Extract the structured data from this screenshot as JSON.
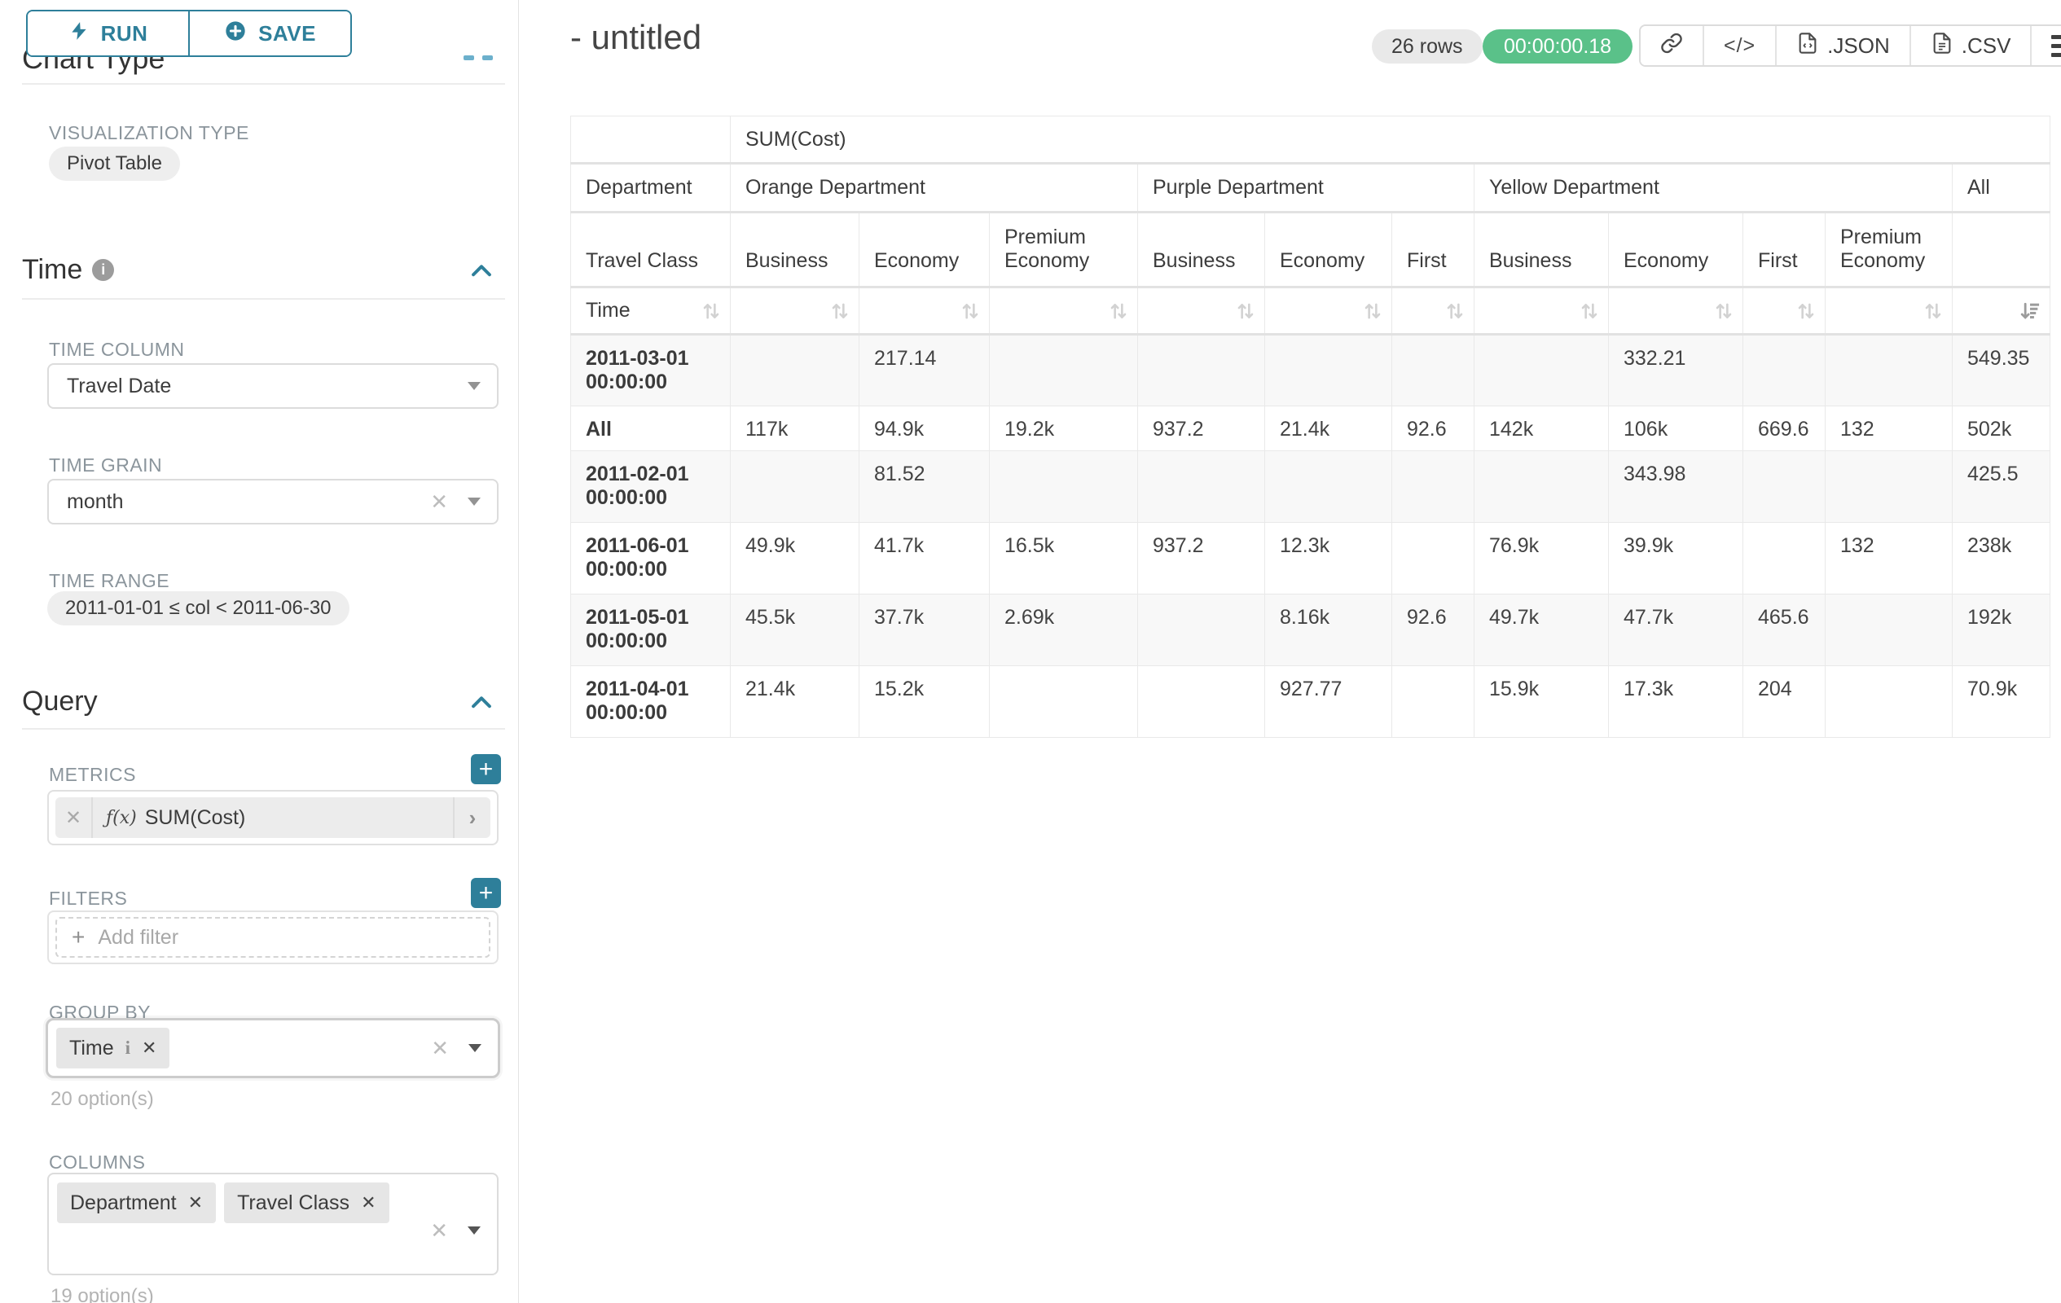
{
  "colors": {
    "primary": "#2e7f9a",
    "success": "#5ac189"
  },
  "sidebar": {
    "run_label": "RUN",
    "save_label": "SAVE",
    "chart_type_heading": "Chart Type",
    "viz_type_label": "VISUALIZATION TYPE",
    "viz_type_value": "Pivot Table",
    "time_section": "Time",
    "time_column_label": "TIME COLUMN",
    "time_column_value": "Travel Date",
    "time_grain_label": "TIME GRAIN",
    "time_grain_value": "month",
    "time_range_label": "TIME RANGE",
    "time_range_value": "2011-01-01 ≤ col < 2011-06-30",
    "query_section": "Query",
    "metrics_label": "METRICS",
    "metric_fx": "ƒ(x)",
    "metric_value": "SUM(Cost)",
    "filters_label": "FILTERS",
    "add_filter_label": "Add filter",
    "group_by_label": "GROUP BY",
    "group_by_tag": "Time",
    "group_by_options": "20 option(s)",
    "columns_label": "COLUMNS",
    "columns_tag_1": "Department",
    "columns_tag_2": "Travel Class",
    "columns_options": "19 option(s)"
  },
  "header": {
    "title": "- untitled",
    "rows_badge": "26 rows",
    "timer_badge": "00:00:00.18",
    "json_label": ".JSON",
    "csv_label": ".CSV"
  },
  "table": {
    "metric_header": "SUM(Cost)",
    "corner_row2": "Department",
    "corner_row3": "Travel Class",
    "corner_row4": "Time",
    "col_groups": [
      {
        "label": "Orange Department",
        "span": 3
      },
      {
        "label": "Purple Department",
        "span": 3
      },
      {
        "label": "Yellow Department",
        "span": 4
      },
      {
        "label": "All",
        "span": 1
      }
    ],
    "col_headers": [
      "Business",
      "Economy",
      "Premium Economy",
      "Business",
      "Economy",
      "First",
      "Business",
      "Economy",
      "First",
      "Premium Economy",
      ""
    ],
    "rows": [
      {
        "label": "2011-03-01 00:00:00",
        "values": [
          "",
          "217.14",
          "",
          "",
          "",
          "",
          "",
          "332.21",
          "",
          "",
          "549.35"
        ]
      },
      {
        "label": "All",
        "values": [
          "117k",
          "94.9k",
          "19.2k",
          "937.2",
          "21.4k",
          "92.6",
          "142k",
          "106k",
          "669.6",
          "132",
          "502k"
        ]
      },
      {
        "label": "2011-02-01 00:00:00",
        "values": [
          "",
          "81.52",
          "",
          "",
          "",
          "",
          "",
          "343.98",
          "",
          "",
          "425.5"
        ]
      },
      {
        "label": "2011-06-01 00:00:00",
        "values": [
          "49.9k",
          "41.7k",
          "16.5k",
          "937.2",
          "12.3k",
          "",
          "76.9k",
          "39.9k",
          "",
          "132",
          "238k"
        ]
      },
      {
        "label": "2011-05-01 00:00:00",
        "values": [
          "45.5k",
          "37.7k",
          "2.69k",
          "",
          "8.16k",
          "92.6",
          "49.7k",
          "47.7k",
          "465.6",
          "",
          "192k"
        ]
      },
      {
        "label": "2011-04-01 00:00:00",
        "values": [
          "21.4k",
          "15.2k",
          "",
          "",
          "927.77",
          "",
          "15.9k",
          "17.3k",
          "204",
          "",
          "70.9k"
        ]
      }
    ]
  }
}
